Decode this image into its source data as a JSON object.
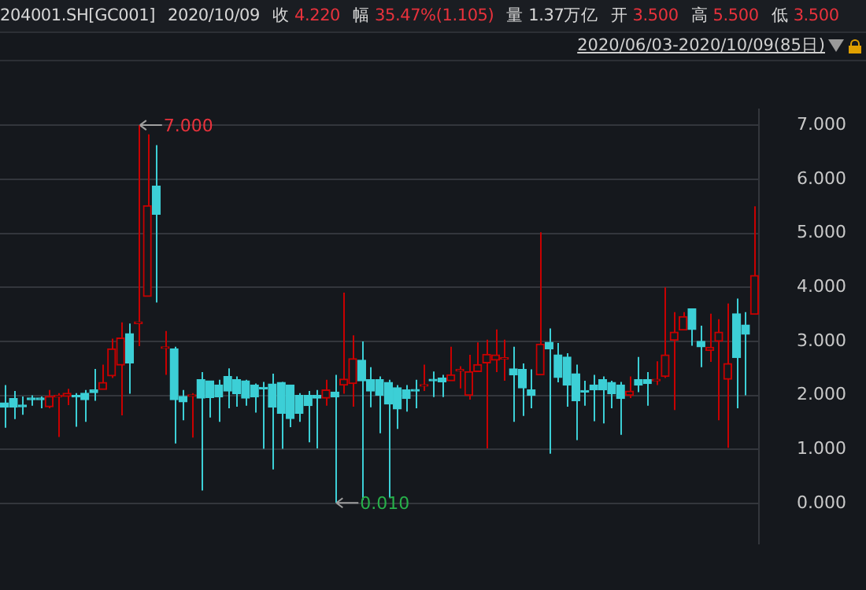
{
  "chart_data": {
    "type": "candlestick",
    "title": "204001.SH[GC001]",
    "subtitle": "2020/10/09",
    "annotations": [
      "收 4.220",
      "幅 35.47%(1.105)",
      "量 1.37万亿",
      "开 3.500",
      "高 5.500",
      "低 3.500",
      "2020/06/03-2020/10/09(85日)",
      "7.000",
      "0.010"
    ],
    "categories": [
      null,
      null,
      null,
      null,
      null,
      null,
      null,
      null,
      null,
      null,
      null,
      null,
      null,
      null,
      null,
      null,
      null,
      null,
      null,
      null,
      null,
      null,
      null,
      null,
      null,
      null,
      null,
      null,
      null,
      null,
      null,
      null,
      null,
      null,
      null,
      null,
      null,
      null,
      null,
      null,
      null,
      null,
      null,
      null,
      null,
      null,
      null,
      null,
      null,
      null,
      null,
      null,
      null,
      null,
      null,
      null,
      null,
      null,
      null,
      null,
      null,
      null,
      null,
      null,
      null,
      null,
      null,
      null,
      null,
      null,
      null,
      null,
      null,
      null,
      null,
      null,
      null,
      null,
      null,
      null,
      null,
      null,
      null,
      null,
      null
    ],
    "ohlc": [
      [
        1.86,
        2.19,
        1.4,
        1.78
      ],
      [
        1.94,
        2.08,
        1.56,
        1.78
      ],
      [
        1.81,
        1.98,
        1.64,
        1.79
      ],
      [
        1.95,
        2.0,
        1.81,
        1.92
      ],
      [
        1.95,
        1.98,
        1.76,
        1.92
      ],
      [
        1.79,
        2.1,
        1.76,
        1.98
      ],
      [
        1.97,
        2.04,
        1.23,
        1.99
      ],
      [
        1.98,
        2.12,
        1.82,
        2.04
      ],
      [
        2.0,
        2.04,
        1.42,
        1.97
      ],
      [
        2.04,
        2.1,
        1.51,
        1.92
      ],
      [
        2.1,
        2.49,
        1.9,
        2.05
      ],
      [
        2.11,
        2.57,
        2.11,
        2.24
      ],
      [
        2.36,
        3.05,
        2.32,
        2.86
      ],
      [
        2.56,
        3.35,
        1.63,
        3.06
      ],
      [
        3.14,
        3.33,
        2.03,
        2.6
      ],
      [
        3.33,
        7.0,
        2.91,
        3.36
      ],
      [
        3.83,
        6.83,
        3.83,
        5.51
      ],
      [
        5.87,
        6.63,
        3.72,
        5.35
      ],
      [
        2.87,
        3.19,
        2.38,
        2.89
      ],
      [
        2.86,
        2.9,
        1.11,
        1.92
      ],
      [
        1.98,
        2.1,
        1.54,
        1.88
      ],
      [
        1.98,
        2.04,
        1.22,
        1.99
      ],
      [
        2.29,
        2.43,
        0.24,
        1.95
      ],
      [
        2.27,
        2.27,
        1.59,
        1.96
      ],
      [
        2.19,
        2.29,
        1.51,
        1.97
      ],
      [
        2.35,
        2.5,
        1.76,
        2.08
      ],
      [
        2.29,
        2.35,
        1.79,
        2.03
      ],
      [
        2.27,
        2.29,
        1.81,
        1.95
      ],
      [
        2.19,
        2.22,
        1.68,
        1.97
      ],
      [
        2.14,
        2.25,
        1.01,
        2.12
      ],
      [
        2.21,
        2.4,
        0.63,
        1.78
      ],
      [
        2.24,
        2.25,
        1.01,
        1.67
      ],
      [
        2.19,
        2.19,
        1.41,
        1.57
      ],
      [
        2.0,
        2.04,
        1.51,
        1.67
      ],
      [
        2.0,
        2.08,
        1.13,
        1.81
      ],
      [
        2.0,
        2.1,
        1.02,
        1.95
      ],
      [
        1.95,
        2.29,
        1.81,
        2.1
      ],
      [
        2.06,
        2.38,
        0.01,
        1.97
      ],
      [
        2.19,
        3.9,
        2.03,
        2.3
      ],
      [
        2.22,
        3.11,
        1.79,
        2.68
      ],
      [
        2.65,
        3.0,
        0.06,
        2.27
      ],
      [
        2.29,
        2.52,
        1.78,
        2.08
      ],
      [
        2.29,
        2.35,
        1.3,
        2.0
      ],
      [
        2.24,
        2.29,
        0.11,
        1.84
      ],
      [
        2.14,
        2.19,
        1.38,
        1.75
      ],
      [
        2.1,
        2.19,
        1.7,
        1.94
      ],
      [
        2.1,
        2.29,
        1.76,
        2.08
      ],
      [
        2.17,
        2.57,
        2.08,
        2.19
      ],
      [
        2.29,
        2.44,
        1.97,
        2.27
      ],
      [
        2.32,
        2.38,
        1.97,
        2.25
      ],
      [
        2.27,
        2.9,
        2.27,
        2.38
      ],
      [
        2.45,
        2.54,
        2.13,
        2.47
      ],
      [
        2.0,
        2.75,
        1.92,
        2.44
      ],
      [
        2.44,
        2.98,
        2.44,
        2.57
      ],
      [
        2.6,
        3.03,
        1.02,
        2.76
      ],
      [
        2.65,
        3.22,
        2.43,
        2.75
      ],
      [
        2.67,
        3.03,
        2.27,
        2.69
      ],
      [
        2.49,
        2.9,
        1.51,
        2.38
      ],
      [
        2.48,
        2.59,
        1.62,
        2.14
      ],
      [
        2.1,
        2.48,
        1.76,
        2.0
      ],
      [
        2.38,
        5.02,
        2.38,
        2.95
      ],
      [
        2.98,
        3.24,
        0.92,
        2.86
      ],
      [
        2.75,
        2.97,
        2.24,
        2.33
      ],
      [
        2.71,
        2.78,
        1.79,
        2.19
      ],
      [
        2.4,
        2.57,
        1.17,
        1.9
      ],
      [
        2.09,
        2.27,
        1.81,
        2.06
      ],
      [
        2.19,
        2.38,
        1.52,
        2.1
      ],
      [
        2.29,
        2.35,
        1.48,
        2.1
      ],
      [
        2.24,
        2.27,
        1.76,
        2.03
      ],
      [
        2.19,
        2.25,
        1.27,
        1.94
      ],
      [
        2.0,
        2.35,
        1.95,
        2.08
      ],
      [
        2.29,
        2.71,
        2.06,
        2.19
      ],
      [
        2.29,
        2.43,
        1.81,
        2.22
      ],
      [
        2.27,
        2.63,
        2.19,
        2.29
      ],
      [
        2.35,
        4.0,
        2.32,
        2.75
      ],
      [
        3.02,
        3.54,
        1.73,
        3.17
      ],
      [
        3.21,
        3.54,
        3.21,
        3.46
      ],
      [
        3.6,
        3.6,
        2.92,
        3.22
      ],
      [
        3.0,
        3.29,
        2.52,
        2.9
      ],
      [
        2.83,
        3.51,
        2.62,
        2.89
      ],
      [
        3.0,
        3.41,
        1.54,
        3.17
      ],
      [
        2.3,
        3.7,
        1.03,
        2.59
      ],
      [
        3.51,
        3.79,
        1.76,
        2.7
      ],
      [
        3.3,
        3.54,
        2.0,
        3.13
      ],
      [
        3.5,
        5.5,
        3.5,
        4.22
      ]
    ],
    "colors": [
      "#3ccfd6",
      "#3ccfd6",
      "#3ccfd6",
      "#3ccfd6",
      "#3ccfd6",
      "#c80000",
      "#c80000",
      "#c80000",
      "#3ccfd6",
      "#3ccfd6",
      "#3ccfd6",
      "#c80000",
      "#c80000",
      "#c80000",
      "#3ccfd6",
      "#c80000",
      "#c80000",
      "#3ccfd6",
      "#c80000",
      "#3ccfd6",
      "#3ccfd6",
      "#c80000",
      "#3ccfd6",
      "#3ccfd6",
      "#3ccfd6",
      "#3ccfd6",
      "#3ccfd6",
      "#3ccfd6",
      "#3ccfd6",
      "#3ccfd6",
      "#3ccfd6",
      "#3ccfd6",
      "#3ccfd6",
      "#3ccfd6",
      "#3ccfd6",
      "#3ccfd6",
      "#c80000",
      "#3ccfd6",
      "#c80000",
      "#c80000",
      "#3ccfd6",
      "#3ccfd6",
      "#3ccfd6",
      "#3ccfd6",
      "#3ccfd6",
      "#3ccfd6",
      "#3ccfd6",
      "#c80000",
      "#3ccfd6",
      "#3ccfd6",
      "#c80000",
      "#c80000",
      "#c80000",
      "#c80000",
      "#c80000",
      "#c80000",
      "#c80000",
      "#3ccfd6",
      "#3ccfd6",
      "#3ccfd6",
      "#c80000",
      "#3ccfd6",
      "#3ccfd6",
      "#3ccfd6",
      "#3ccfd6",
      "#3ccfd6",
      "#3ccfd6",
      "#3ccfd6",
      "#3ccfd6",
      "#3ccfd6",
      "#c80000",
      "#3ccfd6",
      "#3ccfd6",
      "#c80000",
      "#c80000",
      "#c80000",
      "#c80000",
      "#3ccfd6",
      "#3ccfd6",
      "#c80000",
      "#c80000",
      "#c80000",
      "#3ccfd6",
      "#3ccfd6",
      "#c80000"
    ],
    "ylim": [
      -0.74,
      7.29
    ],
    "yticks": [
      {
        "value": 0,
        "label": "0.000"
      },
      {
        "value": 1,
        "label": "1.000"
      },
      {
        "value": 2,
        "label": "2.000"
      },
      {
        "value": 3,
        "label": "3.000"
      },
      {
        "value": 4,
        "label": "4.000"
      },
      {
        "value": 5,
        "label": "5.000"
      },
      {
        "value": 6,
        "label": "6.000"
      },
      {
        "value": 7,
        "label": "7.000"
      }
    ],
    "grid": "y",
    "legend": false,
    "tick_labels": "y"
  }
}
